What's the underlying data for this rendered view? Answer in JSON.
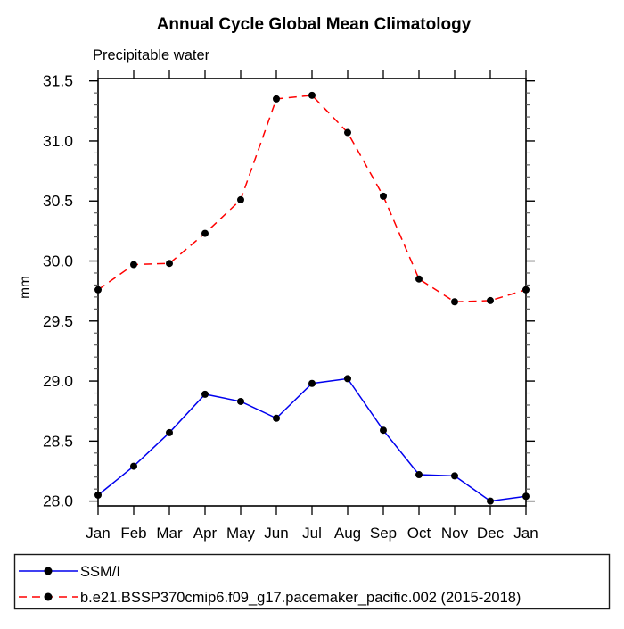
{
  "chart_data": {
    "type": "line",
    "title": "Annual Cycle Global Mean Climatology",
    "subtitle": "Precipitable water",
    "ylabel": "mm",
    "xlabel": "",
    "categories": [
      "Jan",
      "Feb",
      "Mar",
      "Apr",
      "May",
      "Jun",
      "Jul",
      "Aug",
      "Sep",
      "Oct",
      "Nov",
      "Dec",
      "Jan"
    ],
    "ylim": [
      27.96,
      31.52
    ],
    "yticks_major": [
      28.0,
      28.5,
      29.0,
      29.5,
      30.0,
      30.5,
      31.0,
      31.5
    ],
    "ytick_minor_step": 0.1,
    "grid": false,
    "legend_position": "bottom",
    "marker_color": "#000000",
    "axis_color": "#000000",
    "series": [
      {
        "name": "SSM/I",
        "color": "#0000ee",
        "style": "solid",
        "marker": "black-dot",
        "values": [
          28.05,
          28.29,
          28.57,
          28.89,
          28.83,
          28.69,
          28.98,
          29.02,
          28.59,
          28.22,
          28.21,
          28.0,
          28.04
        ]
      },
      {
        "name": "b.e21.BSSP370cmip6.f09_g17.pacemaker_pacific.002 (2015-2018)",
        "color": "#ff0000",
        "style": "dashed",
        "marker": "black-dot",
        "values": [
          29.76,
          29.97,
          29.98,
          30.23,
          30.51,
          31.35,
          31.38,
          31.07,
          30.54,
          29.85,
          29.66,
          29.67,
          29.76
        ]
      }
    ]
  }
}
